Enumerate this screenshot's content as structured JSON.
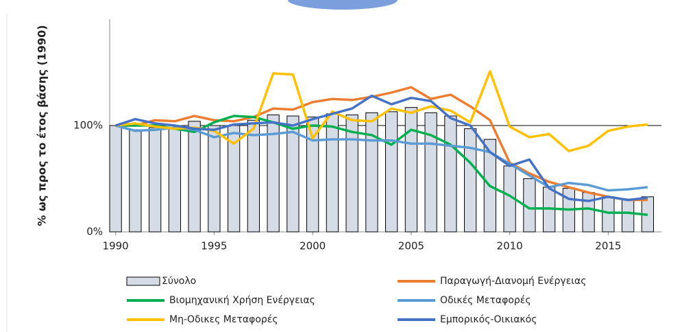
{
  "chart_data": {
    "type": "bar_line",
    "y_label": "% ως προς το έτος βάσης (1990)",
    "x": [
      1990,
      1991,
      1992,
      1993,
      1994,
      1995,
      1996,
      1997,
      1998,
      1999,
      2000,
      2001,
      2002,
      2003,
      2004,
      2005,
      2006,
      2007,
      2008,
      2009,
      2010,
      2011,
      2012,
      2013,
      2014,
      2015,
      2016,
      2017
    ],
    "xlim": [
      1989.7,
      2017.7
    ],
    "xticks": [
      1990,
      1995,
      2000,
      2005,
      2010,
      2015
    ],
    "ylim": [
      0,
      200
    ],
    "yticks": [
      {
        "value": 0,
        "label": "0%"
      },
      {
        "value": 100,
        "label": "100%"
      }
    ],
    "grid": true,
    "series": [
      {
        "name": "Σύνολο",
        "type": "bar",
        "color": "#d6dce5",
        "values": [
          100,
          96,
          98,
          97,
          104,
          100,
          100,
          105,
          110,
          109,
          108,
          111,
          110,
          112,
          113,
          117,
          112,
          109,
          97,
          87,
          62,
          50,
          42,
          41,
          37,
          33,
          30,
          33
        ]
      },
      {
        "name": "Παραγωγή-Διανομή Ενέργειας",
        "type": "line",
        "color": "#ed7d31",
        "values": [
          100,
          100,
          105,
          104,
          109,
          105,
          104,
          108,
          116,
          115,
          122,
          125,
          124,
          127,
          131,
          136,
          125,
          129,
          118,
          105,
          65,
          55,
          47,
          42,
          37,
          33,
          30,
          30
        ]
      },
      {
        "name": "Βιομηχανική Χρήση Ενέργειας",
        "type": "line",
        "color": "#00b050",
        "values": [
          100,
          100,
          100,
          97,
          94,
          103,
          109,
          108,
          103,
          97,
          100,
          99,
          94,
          91,
          82,
          96,
          91,
          82,
          65,
          43,
          34,
          22,
          22,
          21,
          22,
          18,
          18,
          16
        ]
      },
      {
        "name": "Οδικές Μεταφορές",
        "type": "line",
        "color": "#5b9bd5",
        "values": [
          100,
          95,
          96,
          98,
          96,
          89,
          93,
          91,
          92,
          94,
          86,
          87,
          87,
          86,
          86,
          83,
          83,
          81,
          79,
          75,
          64,
          53,
          42,
          46,
          44,
          39,
          40,
          42
        ]
      },
      {
        "name": "Μη-Οδικες Μεταφορές",
        "type": "line",
        "color": "#ffc000",
        "values": [
          100,
          102,
          99,
          97,
          98,
          95,
          83,
          97,
          149,
          148,
          88,
          113,
          105,
          104,
          116,
          112,
          118,
          114,
          103,
          151,
          99,
          89,
          92,
          76,
          81,
          95,
          99,
          101
        ]
      },
      {
        "name": "Εμπορικός-Οικιακός",
        "type": "line",
        "color": "#4472c4",
        "values": [
          100,
          106,
          102,
          100,
          97,
          96,
          101,
          102,
          103,
          100,
          106,
          111,
          116,
          128,
          120,
          126,
          123,
          107,
          100,
          75,
          62,
          68,
          41,
          31,
          29,
          33,
          30,
          32
        ]
      }
    ]
  }
}
